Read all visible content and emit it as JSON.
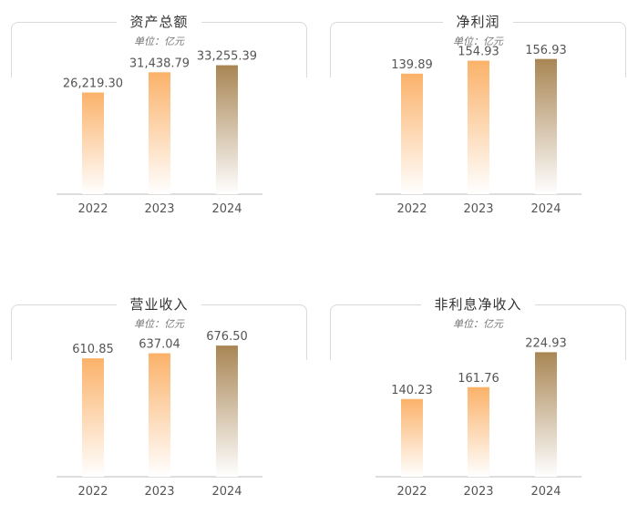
{
  "unit_label": "单位：亿元",
  "chart_data": [
    {
      "type": "bar",
      "title": "资产总额",
      "categories": [
        "2022",
        "2023",
        "2024"
      ],
      "values": [
        26219.3,
        31438.79,
        33255.39
      ],
      "labels": [
        "26,219.30",
        "31,438.79",
        "33,255.39"
      ],
      "ylim": [
        0,
        40000
      ],
      "colors": [
        "#fbb26a",
        "#fbb26a",
        "#a98654"
      ]
    },
    {
      "type": "bar",
      "title": "净利润",
      "categories": [
        "2022",
        "2023",
        "2024"
      ],
      "values": [
        139.89,
        154.93,
        156.93
      ],
      "labels": [
        "139.89",
        "154.93",
        "156.93"
      ],
      "ylim": [
        0,
        180
      ],
      "colors": [
        "#fbb26a",
        "#fbb26a",
        "#a98654"
      ]
    },
    {
      "type": "bar",
      "title": "营业收入",
      "categories": [
        "2022",
        "2023",
        "2024"
      ],
      "values": [
        610.85,
        637.04,
        676.5
      ],
      "labels": [
        "610.85",
        "637.04",
        "676.50"
      ],
      "ylim": [
        0,
        800
      ],
      "colors": [
        "#fbb26a",
        "#fbb26a",
        "#a98654"
      ]
    },
    {
      "type": "bar",
      "title": "非利息净收入",
      "categories": [
        "2022",
        "2023",
        "2024"
      ],
      "values": [
        140.23,
        161.76,
        224.93
      ],
      "labels": [
        "140.23",
        "161.76",
        "224.93"
      ],
      "ylim": [
        0,
        280
      ],
      "colors": [
        "#fbb26a",
        "#fbb26a",
        "#a98654"
      ]
    }
  ]
}
